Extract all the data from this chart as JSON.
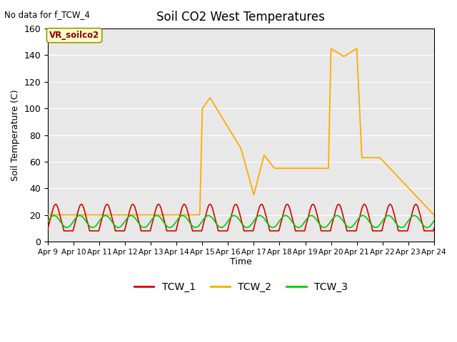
{
  "title": "Soil CO2 West Temperatures",
  "subtitle": "No data for f_TCW_4",
  "ylabel": "Soil Temperature (C)",
  "xlabel": "Time",
  "annotation": "VR_soilco2",
  "ylim": [
    0,
    160
  ],
  "yticks": [
    0,
    20,
    40,
    60,
    80,
    100,
    120,
    140,
    160
  ],
  "bg_color": "#e8e8e8",
  "legend_entries": [
    "TCW_1",
    "TCW_2",
    "TCW_3"
  ],
  "tcw1_color": "#dd0000",
  "tcw2_color": "#ffaa00",
  "tcw3_color": "#00cc00",
  "xtick_labels": [
    "Apr 9",
    "Apr 10",
    "Apr 11",
    "Apr 12",
    "Apr 13",
    "Apr 14",
    "Apr 15",
    "Apr 16",
    "Apr 17",
    "Apr 18",
    "Apr 19",
    "Apr 20",
    "Apr 21",
    "Apr 22",
    "Apr 23",
    "Apr 24"
  ],
  "tcw2_key_x": [
    0,
    5.9,
    6.0,
    6.3,
    7.5,
    8.0,
    8.4,
    8.8,
    9.0,
    10.9,
    11.0,
    11.5,
    12.0,
    12.2,
    12.9,
    15.0
  ],
  "tcw2_key_y": [
    20,
    20,
    100,
    108,
    70,
    35,
    65,
    55,
    55,
    55,
    145,
    139,
    145,
    63,
    63,
    20
  ]
}
